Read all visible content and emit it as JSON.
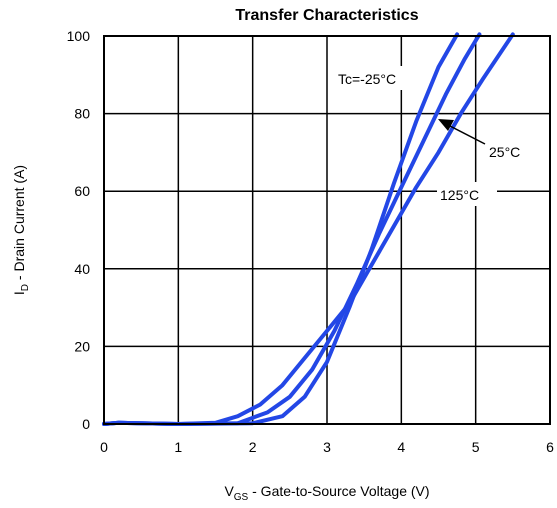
{
  "chart_data": {
    "type": "line",
    "title": "Transfer Characteristics",
    "xlabel": {
      "prefix": "V",
      "sub": "GS",
      "rest": " - Gate-to-Source Voltage (V)"
    },
    "ylabel": {
      "prefix": "I",
      "sub": "D",
      "rest": " - Drain Current (A)"
    },
    "xlim": [
      0,
      6
    ],
    "ylim": [
      0,
      100
    ],
    "x_ticks": [
      0,
      1,
      2,
      3,
      4,
      5,
      6
    ],
    "y_ticks": [
      0,
      20,
      40,
      60,
      80,
      100
    ],
    "grid": true,
    "color": "#2347e6",
    "series": [
      {
        "name": "Tc=-25°C",
        "x": [
          0,
          0.2,
          1.0,
          2.0,
          2.4,
          2.7,
          3.0,
          3.3,
          3.6,
          3.9,
          4.2,
          4.5,
          4.75
        ],
        "y": [
          0,
          0.3,
          0,
          0.2,
          2,
          7,
          16,
          30,
          45,
          62,
          78,
          92,
          101
        ]
      },
      {
        "name": "25°C",
        "x": [
          0,
          0.2,
          1.0,
          1.8,
          2.2,
          2.5,
          2.8,
          3.1,
          3.4,
          3.7,
          4.0,
          4.3,
          4.6,
          4.85,
          5.05
        ],
        "y": [
          0,
          0.3,
          0,
          0.2,
          3,
          7,
          14,
          24,
          36,
          49,
          61,
          73,
          85,
          94,
          101
        ]
      },
      {
        "name": "125°C",
        "x": [
          0,
          0.2,
          1.0,
          1.5,
          1.8,
          2.1,
          2.4,
          2.7,
          3.0,
          3.3,
          3.6,
          3.9,
          4.2,
          4.5,
          4.8,
          5.1,
          5.5
        ],
        "y": [
          0,
          0.3,
          0,
          0.3,
          2,
          5,
          10,
          17,
          24,
          31,
          41,
          51,
          61,
          70,
          80,
          89,
          101
        ]
      }
    ],
    "annotations": [
      {
        "text": "Tc=-25°C",
        "series": 0
      },
      {
        "text": "25°C",
        "series": 1
      },
      {
        "text": "125°C",
        "series": 2
      }
    ]
  }
}
